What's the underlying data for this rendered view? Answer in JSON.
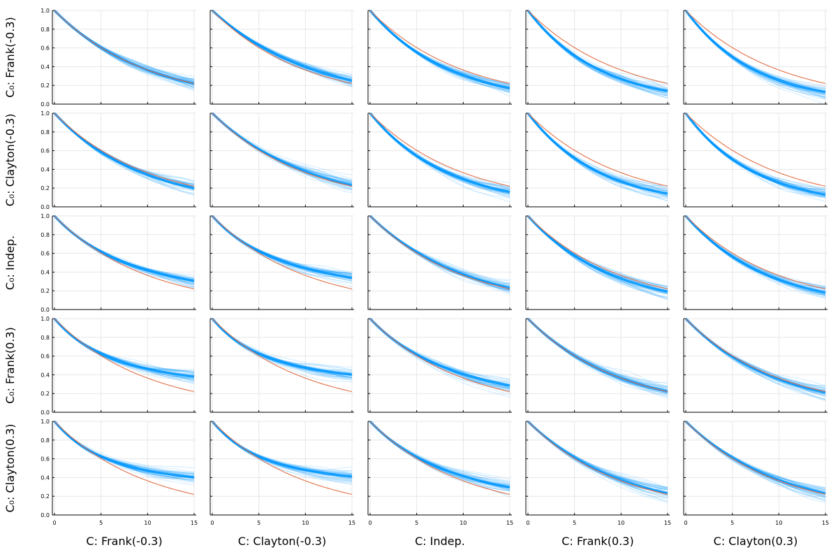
{
  "chart_data": {
    "type": "line",
    "layout": "grid-5x5",
    "row_labels": [
      "C₀: Frank(-0.3)",
      "C₀: Clayton(-0.3)",
      "C₀: Indep.",
      "C₀: Frank(0.3)",
      "C₀: Clayton(0.3)"
    ],
    "col_labels": [
      "C: Frank(-0.3)",
      "C: Clayton(-0.3)",
      "C: Indep.",
      "C: Frank(0.3)",
      "C: Clayton(0.3)"
    ],
    "xlim": [
      0,
      15
    ],
    "ylim": [
      0.0,
      1.0
    ],
    "xticks": [
      0,
      5,
      10,
      15
    ],
    "xtick_labels": [
      "0",
      "5",
      "10",
      "15"
    ],
    "yticks": [
      0.0,
      0.2,
      0.4,
      0.6,
      0.8,
      1.0
    ],
    "ytick_labels": [
      "0.0",
      "0.2",
      "0.4",
      "0.6",
      "0.8",
      "1.0"
    ],
    "grid": true,
    "series_colors": {
      "samples": "#0097ff",
      "reference": "#e26f46"
    },
    "series": [
      {
        "name": "reference",
        "description": "true curve",
        "x": [
          0,
          15
        ],
        "endpoint_value": 0.22
      },
      {
        "name": "samples",
        "description": "bootstrap sample curves (thin, translucent)"
      }
    ],
    "panel_endpoint_values": [
      [
        0.22,
        0.25,
        0.17,
        0.14,
        0.13
      ],
      [
        0.2,
        0.23,
        0.16,
        0.14,
        0.13
      ],
      [
        0.3,
        0.33,
        0.23,
        0.19,
        0.18
      ],
      [
        0.37,
        0.39,
        0.28,
        0.22,
        0.21
      ],
      [
        0.39,
        0.4,
        0.29,
        0.23,
        0.23
      ]
    ]
  }
}
